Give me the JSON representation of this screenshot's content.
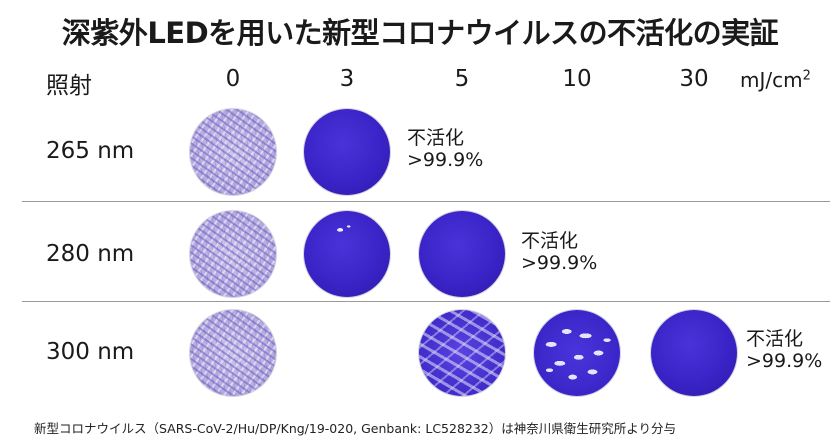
{
  "title": "深紫外LEDを用いた新型コロナウイルスの不活化の実証",
  "header": {
    "irradiation_label": "照射",
    "doses": [
      "0",
      "3",
      "5",
      "10",
      "30"
    ],
    "unit": "mJ/cm",
    "unit_superscript": "2"
  },
  "rows": [
    {
      "wavelength": "265 nm",
      "inactivation_line1": "不活化",
      "inactivation_line2": ">99.9%"
    },
    {
      "wavelength": "280 nm",
      "inactivation_line1": "不活化",
      "inactivation_line2": ">99.9%"
    },
    {
      "wavelength": "300 nm",
      "inactivation_line1": "不活化",
      "inactivation_line2": ">99.9%"
    }
  ],
  "footer": "新型コロナウイルス（SARS-CoV-2/Hu/DP/Kng/19-020, Genbank: LC528232）は神奈川県衛生研究所より分与"
}
